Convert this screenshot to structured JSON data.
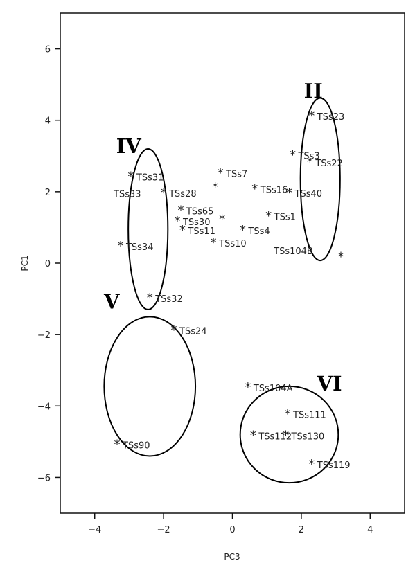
{
  "chart_data": {
    "type": "scatter",
    "xlabel": "PC3",
    "ylabel": "PC1",
    "xlim": [
      -5,
      5
    ],
    "ylim": [
      -7,
      7
    ],
    "xticks": [
      "−4",
      "−2",
      "0",
      "2",
      "4"
    ],
    "yticks": [
      "−6",
      "−4",
      "−2",
      "0",
      "2",
      "4",
      "6"
    ],
    "xtick_values": [
      -4,
      -2,
      0,
      2,
      4
    ],
    "ytick_values": [
      -6,
      -4,
      -2,
      0,
      2,
      4,
      6
    ],
    "marker": "*",
    "points": [
      {
        "label": "TSs23",
        "x": 2.3,
        "y": 4.15
      },
      {
        "label": "TSs3",
        "x": 1.75,
        "y": 3.05
      },
      {
        "label": "TSs22",
        "x": 2.25,
        "y": 2.85
      },
      {
        "label": "TSs40",
        "x": 1.65,
        "y": 2.0
      },
      {
        "label": "TSs1",
        "x": 1.05,
        "y": 1.35
      },
      {
        "label": "TSs104B",
        "x": null,
        "y": null
      },
      {
        "label": "",
        "x": 3.15,
        "y": 0.2
      },
      {
        "label": "TSs31",
        "x": -2.95,
        "y": 2.45
      },
      {
        "label": "TSs33",
        "x": null,
        "y": null
      },
      {
        "label": "TSs28",
        "x": -2.0,
        "y": 2.0
      },
      {
        "label": "TSs7",
        "x": -0.35,
        "y": 2.55
      },
      {
        "label": "TSs16",
        "x": 0.65,
        "y": 2.1
      },
      {
        "label": "",
        "x": -0.5,
        "y": 2.15
      },
      {
        "label": "TSs65",
        "x": -1.5,
        "y": 1.5
      },
      {
        "label": "TSs30",
        "x": -1.6,
        "y": 1.2
      },
      {
        "label": "TSs11",
        "x": -1.45,
        "y": 0.95
      },
      {
        "label": "",
        "x": -0.3,
        "y": 1.25
      },
      {
        "label": "TSs4",
        "x": 0.3,
        "y": 0.95
      },
      {
        "label": "TSs10",
        "x": -0.55,
        "y": 0.6
      },
      {
        "label": "TSs34",
        "x": -3.25,
        "y": 0.5
      },
      {
        "label": "TSs32",
        "x": -2.4,
        "y": -0.95
      },
      {
        "label": "TSs24",
        "x": -1.7,
        "y": -1.85
      },
      {
        "label": "TSs90",
        "x": -3.35,
        "y": -5.05
      },
      {
        "label": "TSs104A",
        "x": 0.45,
        "y": -3.45
      },
      {
        "label": "TSs111",
        "x": 1.6,
        "y": -4.2
      },
      {
        "label": "TSs112",
        "x": 0.6,
        "y": -4.8
      },
      {
        "label": "TSs130",
        "x": 1.55,
        "y": -4.8
      },
      {
        "label": "TSs119",
        "x": 2.3,
        "y": -5.6
      }
    ],
    "free_labels": [
      {
        "label": "TSs104B",
        "x": 1.2,
        "y": 0.35
      },
      {
        "label": "TSs33",
        "x": -3.45,
        "y": 1.95
      }
    ],
    "groups": [
      {
        "label": "II",
        "cx": 2.55,
        "cy": 2.35,
        "rx": 1.15,
        "ry": 4.55
      },
      {
        "label": "IV",
        "cx": -2.45,
        "cy": 0.95,
        "rx": 1.15,
        "ry": 4.5
      },
      {
        "label": "V",
        "cx": -2.4,
        "cy": -3.45,
        "rx": 2.65,
        "ry": 3.9
      },
      {
        "label": "VI",
        "cx": 1.65,
        "cy": -4.8,
        "rx": 2.85,
        "ry": 2.7
      }
    ]
  }
}
